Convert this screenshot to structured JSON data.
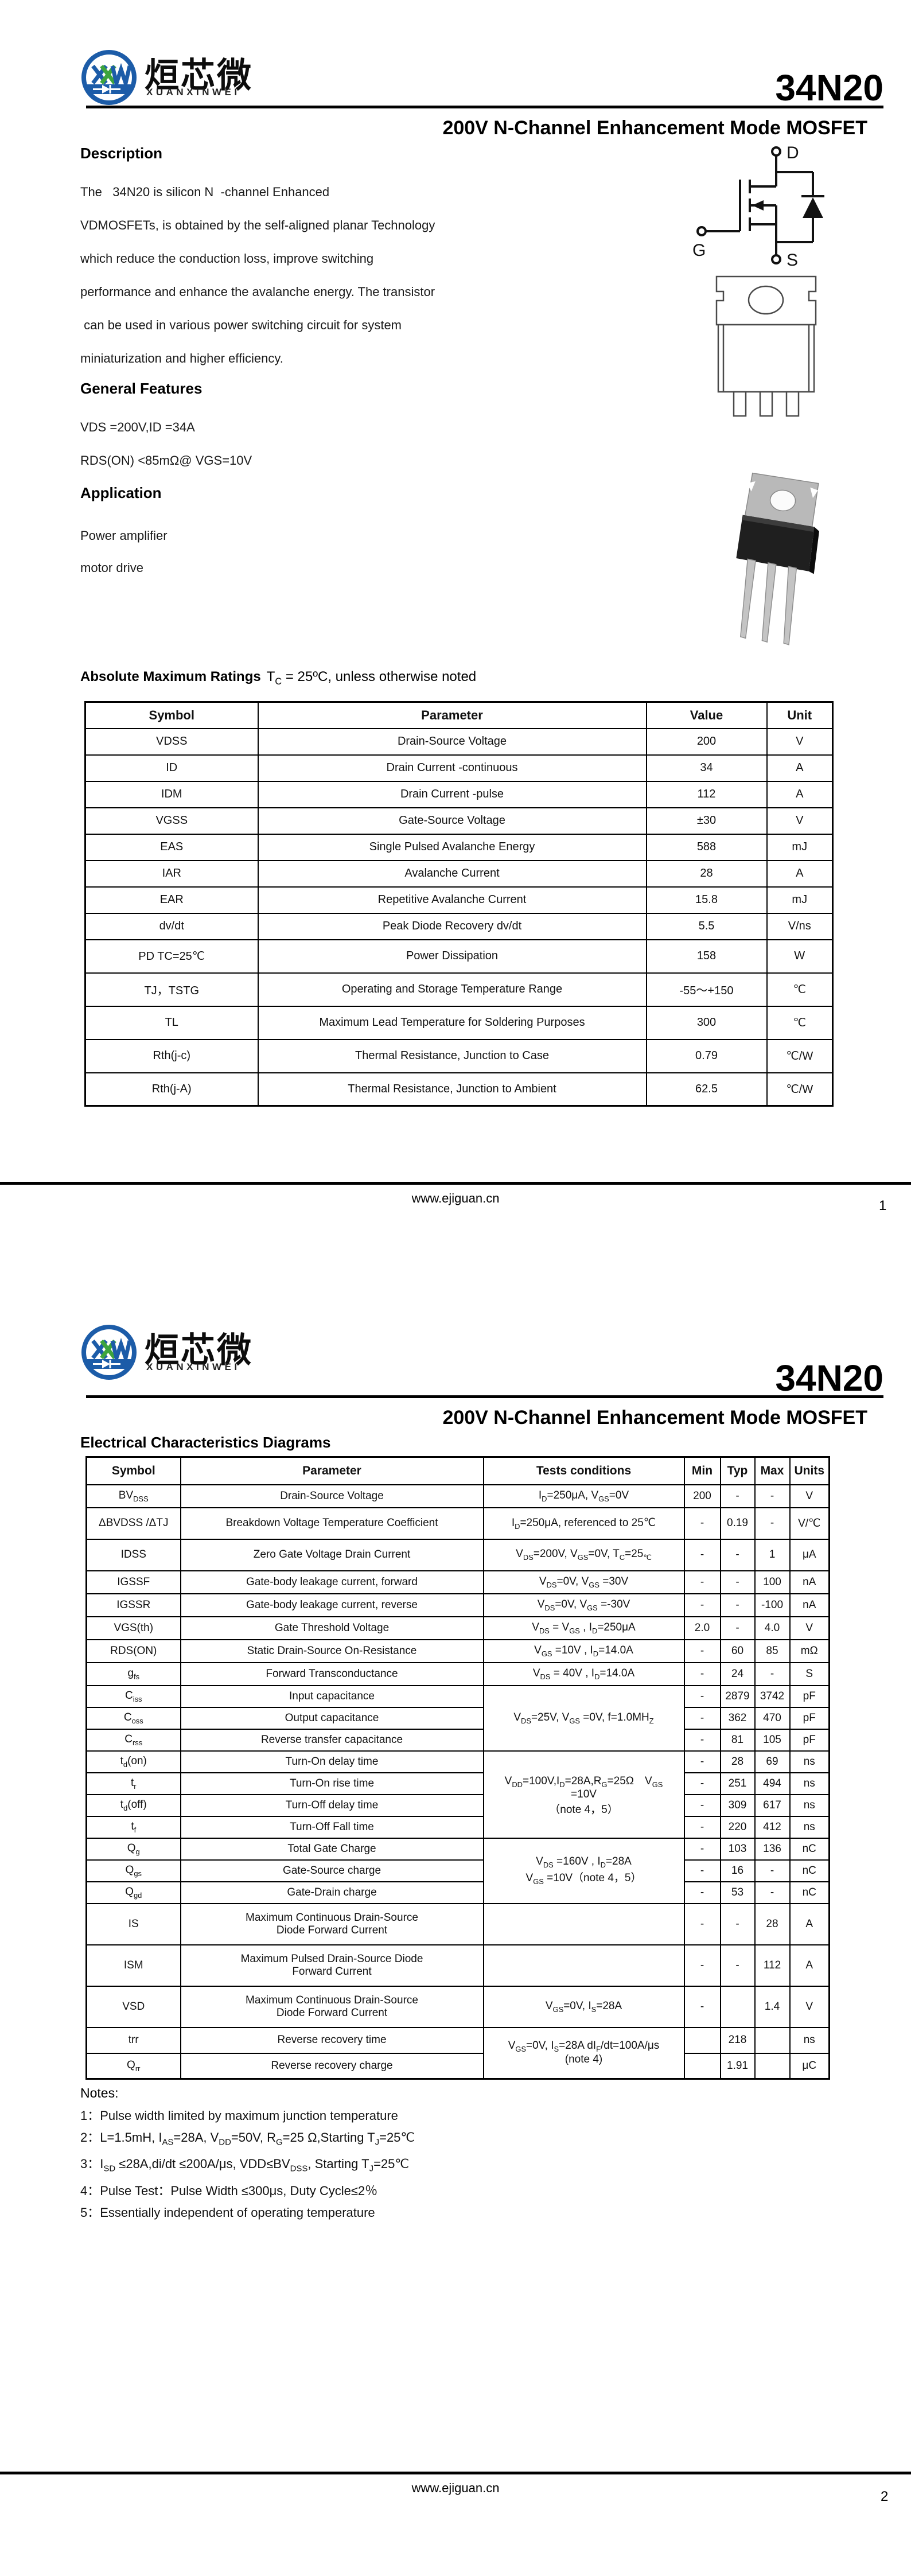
{
  "brand": {
    "cjk": "烜芯微",
    "latin": "XUANXINWEI",
    "blue": "#1c5ca8",
    "green": "#3da43d"
  },
  "part_number": "34N20",
  "subtitle": "200V N-Channel Enhancement Mode MOSFET",
  "footer_url": "www.ejiguan.cn",
  "page1": {
    "page_number": "1",
    "description_heading": "Description",
    "description_lines": [
      "The   34N20 is silicon N  -channel Enhanced",
      "VDMOSFETs, is obtained by the self-aligned planar Technology",
      "which reduce the conduction loss, improve switching",
      "performance and enhance the avalanche energy. The transistor",
      " can be used in various power switching circuit for system",
      "miniaturization and higher efficiency."
    ],
    "features_heading": "General Features",
    "features": [
      "VDS =200V,ID =34A",
      "RDS(ON) <85mΩ@ VGS=10V"
    ],
    "application_heading": "Application",
    "applications": [
      "Power amplifier",
      "motor drive"
    ],
    "mosfet_labels": {
      "drain": "D",
      "gate": "G",
      "source": "S"
    },
    "abs_max": {
      "heading": "Absolute Maximum Ratings",
      "heading_note": "T_{C} = 25ºC, unless otherwise noted",
      "columns": [
        "Symbol",
        "Parameter",
        "Value",
        "Unit"
      ],
      "rows": [
        {
          "symbol": "VDSS",
          "parameter": "Drain-Source Voltage",
          "value": "200",
          "unit": "V"
        },
        {
          "symbol": "ID",
          "parameter": "Drain Current -continuous",
          "value": "34",
          "unit": "A"
        },
        {
          "symbol": "IDM",
          "parameter": "Drain Current -pulse",
          "value": "112",
          "unit": "A"
        },
        {
          "symbol": "VGSS",
          "parameter": "Gate-Source Voltage",
          "value": "±30",
          "unit": "V"
        },
        {
          "symbol": "EAS",
          "parameter": "Single Pulsed Avalanche Energy",
          "value": "588",
          "unit": "mJ"
        },
        {
          "symbol": "IAR",
          "parameter": "Avalanche Current",
          "value": "28",
          "unit": "A"
        },
        {
          "symbol": "EAR",
          "parameter": "Repetitive Avalanche Current",
          "value": "15.8",
          "unit": "mJ"
        },
        {
          "symbol": "dv/dt",
          "parameter": "Peak Diode Recovery dv/dt",
          "value": "5.5",
          "unit": "V/ns"
        },
        {
          "symbol": "PD  TC=25℃",
          "parameter": "Power Dissipation",
          "value": "158",
          "unit": "W"
        },
        {
          "symbol": "TJ，TSTG",
          "parameter": "Operating and Storage Temperature Range",
          "value": "-55～+150",
          "unit": "℃"
        },
        {
          "symbol": "TL",
          "parameter": "Maximum Lead Temperature for Soldering Purposes",
          "value": "300",
          "unit": "℃"
        },
        {
          "symbol": "Rth(j-c)",
          "parameter": "Thermal Resistance, Junction to Case",
          "value": "0.79",
          "unit": "℃/W"
        },
        {
          "symbol": "Rth(j-A)",
          "parameter": "Thermal Resistance, Junction to Ambient",
          "value": "62.5",
          "unit": "℃/W"
        }
      ]
    }
  },
  "page2": {
    "page_number": "2",
    "section_heading": "Electrical Characteristics Diagrams",
    "elec": {
      "columns": [
        "Symbol",
        "Parameter",
        "Tests conditions",
        "Min",
        "Typ",
        "Max",
        "Units"
      ],
      "rows": [
        {
          "symbol": "BV_{DSS}",
          "parameter": "Drain-Source Voltage",
          "cond": {
            "text": "I_{D}=250μA, V_{GS}=0V",
            "span": 1
          },
          "min": "200",
          "typ": "-",
          "max": "-",
          "units": "V"
        },
        {
          "symbol": "ΔBVDSS /ΔTJ",
          "parameter": "Breakdown Voltage Temperature Coefficient",
          "cond": {
            "text": "I_{D}=250μA, referenced to 25℃",
            "span": 1
          },
          "min": "-",
          "typ": "0.19",
          "max": "-",
          "units": "V/℃"
        },
        {
          "symbol": "IDSS",
          "parameter": "Zero Gate Voltage Drain Current",
          "cond": {
            "text": "V_{DS}=200V, V_{GS}=0V, T_{C}=25_{℃}",
            "span": 1
          },
          "min": "-",
          "typ": "-",
          "max": "1",
          "units": "μA"
        },
        {
          "symbol": "IGSSF",
          "parameter": "Gate-body leakage current, forward",
          "cond": {
            "text": "V_{DS}=0V, V_{GS} =30V",
            "span": 1
          },
          "min": "-",
          "typ": "-",
          "max": "100",
          "units": "nA"
        },
        {
          "symbol": "IGSSR",
          "parameter": "Gate-body leakage current, reverse",
          "cond": {
            "text": "V_{DS}=0V, V_{GS} =-30V",
            "span": 1
          },
          "min": "-",
          "typ": "-",
          "max": "-100",
          "units": "nA"
        },
        {
          "symbol": "VGS(th)",
          "parameter": "Gate Threshold Voltage",
          "cond": {
            "text": "V_{DS} = V_{GS} , I_{D}=250μA",
            "span": 1
          },
          "min": "2.0",
          "typ": "-",
          "max": "4.0",
          "units": "V"
        },
        {
          "symbol": "RDS(ON)",
          "parameter": "Static Drain-Source On-Resistance",
          "cond": {
            "text": "V_{GS} =10V , I_{D}=14.0A",
            "span": 1
          },
          "min": "-",
          "typ": "60",
          "max": "85",
          "units": "mΩ"
        },
        {
          "symbol": "g_{fs}",
          "parameter": "Forward Transconductance",
          "cond": {
            "text": "V_{DS} = 40V , I_{D}=14.0A",
            "span": 1
          },
          "min": "-",
          "typ": "24",
          "max": "-",
          "units": "S"
        },
        {
          "symbol": "C_{iss}",
          "parameter": "Input capacitance",
          "cond": {
            "text": "V_{DS}=25V, V_{GS} =0V, f=1.0MH_{Z}",
            "span": 3
          },
          "min": "-",
          "typ": "2879",
          "max": "3742",
          "units": "pF"
        },
        {
          "symbol": "C_{oss}",
          "parameter": "Output capacitance",
          "cond": null,
          "min": "-",
          "typ": "362",
          "max": "470",
          "units": "pF"
        },
        {
          "symbol": "C_{rss}",
          "parameter": "Reverse transfer capacitance",
          "cond": null,
          "min": "-",
          "typ": "81",
          "max": "105",
          "units": "pF"
        },
        {
          "symbol": "t_{d}(on)",
          "parameter": "Turn-On delay time",
          "cond": {
            "text": "V_{DD}=100V,I_{D}=28A,R_{G}=25Ω　V_{GS}\n=10V\n（note 4，5）",
            "span": 4
          },
          "min": "-",
          "typ": "28",
          "max": "69",
          "units": "ns"
        },
        {
          "symbol": "t_{r}",
          "parameter": "Turn-On rise time",
          "cond": null,
          "min": "-",
          "typ": "251",
          "max": "494",
          "units": "ns"
        },
        {
          "symbol": "t_{d}(off)",
          "parameter": "Turn-Off delay time",
          "cond": null,
          "min": "-",
          "typ": "309",
          "max": "617",
          "units": "ns"
        },
        {
          "symbol": "t_{f}",
          "parameter": "Turn-Off Fall time",
          "cond": null,
          "min": "-",
          "typ": "220",
          "max": "412",
          "units": "ns"
        },
        {
          "symbol": "Q_{g}",
          "parameter": "Total Gate Charge",
          "cond": {
            "text": "V_{DS} =160V , I_{D}=28A\nV_{GS} =10V（note 4，5）",
            "span": 3
          },
          "min": "-",
          "typ": "103",
          "max": "136",
          "units": "nC"
        },
        {
          "symbol": "Q_{gs}",
          "parameter": "Gate-Source charge",
          "cond": null,
          "min": "-",
          "typ": "16",
          "max": "-",
          "units": "nC"
        },
        {
          "symbol": "Q_{gd}",
          "parameter": "Gate-Drain charge",
          "cond": null,
          "min": "-",
          "typ": "53",
          "max": "-",
          "units": "nC"
        },
        {
          "symbol": "IS",
          "parameter": "Maximum Continuous Drain-Source\nDiode Forward Current",
          "cond": {
            "text": "",
            "span": 1
          },
          "min": "-",
          "typ": "-",
          "max": "28",
          "units": "A"
        },
        {
          "symbol": "ISM",
          "parameter": "Maximum Pulsed Drain-Source Diode\nForward Current",
          "cond": {
            "text": "",
            "span": 1
          },
          "min": "-",
          "typ": "-",
          "max": "112",
          "units": "A"
        },
        {
          "symbol": "VSD",
          "parameter": "Maximum Continuous Drain-Source\nDiode Forward Current",
          "cond": {
            "text": "V_{GS}=0V, I_{S}=28A",
            "span": 1
          },
          "min": "-",
          "typ": "",
          "max": "1.4",
          "units": "V"
        },
        {
          "symbol": "trr",
          "parameter": "Reverse recovery time",
          "cond": {
            "text": "V_{GS}=0V, I_{S}=28A dI_{F}/dt=100A/μs\n(note 4)",
            "span": 2
          },
          "min": "",
          "typ": "218",
          "max": "",
          "units": "ns"
        },
        {
          "symbol": "Q_{rr}",
          "parameter": "Reverse recovery charge",
          "cond": null,
          "min": "",
          "typ": "1.91",
          "max": "",
          "units": "μC"
        }
      ]
    },
    "notes_heading": "Notes:",
    "notes": [
      "1：Pulse width limited by maximum junction temperature",
      "2：L=1.5mH, I_{AS}=28A, V_{DD}=50V, R_{G}=25 Ω,Starting T_{J}=25℃",
      "3：I_{SD} ≤28A,di/dt ≤200A/μs, VDD≤BV_{DSS}, Starting T_{J}=25℃",
      "4：Pulse Test：Pulse Width ≤300μs, Duty Cycle≤2％",
      "5：Essentially independent of operating temperature"
    ]
  }
}
